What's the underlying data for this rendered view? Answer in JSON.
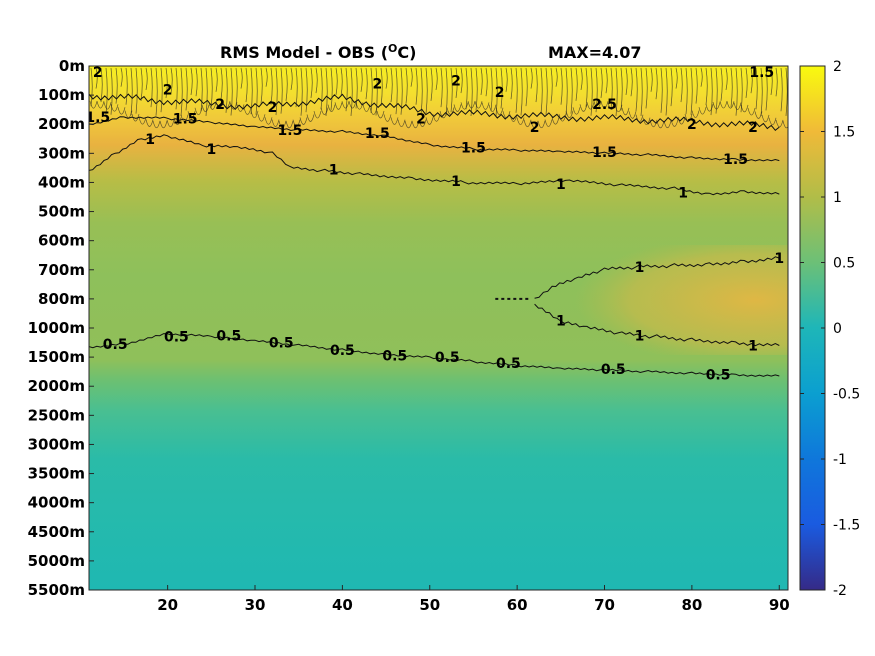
{
  "chart_data": {
    "type": "heatmap",
    "title": "RMS Model - OBS (°C)",
    "title_main": "RMS Model - OBS (",
    "title_sup": "O",
    "title_end": "C)",
    "max_label": "MAX=4.07",
    "x_ticks": [
      20,
      30,
      40,
      50,
      60,
      70,
      80,
      90
    ],
    "x_range": [
      11,
      91
    ],
    "y_ticks": [
      "0m",
      "100m",
      "200m",
      "300m",
      "400m",
      "500m",
      "600m",
      "700m",
      "800m",
      "1000m",
      "1500m",
      "2000m",
      "2500m",
      "3000m",
      "3500m",
      "4000m",
      "4500m",
      "5000m",
      "5500m"
    ],
    "colorbar": {
      "ticks": [
        2,
        1.5,
        1,
        0.5,
        0,
        -0.5,
        -1,
        -1.5,
        -2
      ],
      "range": [
        -2,
        2
      ],
      "colormap": "parula"
    },
    "contour_levels": [
      0.5,
      1,
      1.5,
      2
    ],
    "contour_labels": [
      {
        "text": "2",
        "x": 12,
        "level": 0.2
      },
      {
        "text": "2",
        "x": 20,
        "level": 0.8
      },
      {
        "text": "2",
        "x": 26,
        "level": 1.3
      },
      {
        "text": "2",
        "x": 32,
        "level": 1.4
      },
      {
        "text": "2",
        "x": 44,
        "level": 0.6
      },
      {
        "text": "2",
        "x": 49,
        "level": 1.8
      },
      {
        "text": "2",
        "x": 53,
        "level": 0.5
      },
      {
        "text": "2",
        "x": 58,
        "level": 0.9
      },
      {
        "text": "2",
        "x": 62,
        "level": 2.1
      },
      {
        "text": "2.5",
        "x": 70,
        "level": 1.3
      },
      {
        "text": "2",
        "x": 80,
        "level": 2.0
      },
      {
        "text": "2",
        "x": 87,
        "level": 2.1
      },
      {
        "text": "1.5",
        "x": 12,
        "level": 1.75
      },
      {
        "text": "1.5",
        "x": 22,
        "level": 1.8
      },
      {
        "text": "1.5",
        "x": 34,
        "level": 2.2
      },
      {
        "text": "1.5",
        "x": 44,
        "level": 2.3
      },
      {
        "text": "1.5",
        "x": 55,
        "level": 2.8
      },
      {
        "text": "1.5",
        "x": 70,
        "level": 2.95
      },
      {
        "text": "1.5",
        "x": 85,
        "level": 3.2
      },
      {
        "text": "1.5",
        "x": 88,
        "level": 0.2
      },
      {
        "text": "1",
        "x": 18,
        "level": 2.5
      },
      {
        "text": "1",
        "x": 25,
        "level": 2.85
      },
      {
        "text": "1",
        "x": 39,
        "level": 3.55
      },
      {
        "text": "1",
        "x": 53,
        "level": 3.95
      },
      {
        "text": "1",
        "x": 65,
        "level": 4.05
      },
      {
        "text": "1",
        "x": 79,
        "level": 4.35
      },
      {
        "text": "1",
        "x": 74,
        "level": 6.9
      },
      {
        "text": "1",
        "x": 90,
        "level": 6.6
      },
      {
        "text": "1",
        "x": 74,
        "level": 9.25
      },
      {
        "text": "1",
        "x": 87,
        "level": 9.6
      },
      {
        "text": "1",
        "x": 65,
        "level": 8.75
      },
      {
        "text": "0.5",
        "x": 14,
        "level": 9.55
      },
      {
        "text": "0.5",
        "x": 21,
        "level": 9.3
      },
      {
        "text": "0.5",
        "x": 27,
        "level": 9.25
      },
      {
        "text": "0.5",
        "x": 33,
        "level": 9.5
      },
      {
        "text": "0.5",
        "x": 40,
        "level": 9.75
      },
      {
        "text": "0.5",
        "x": 46,
        "level": 9.95
      },
      {
        "text": "0.5",
        "x": 52,
        "level": 10.0
      },
      {
        "text": "0.5",
        "x": 59,
        "level": 10.2
      },
      {
        "text": "0.5",
        "x": 71,
        "level": 10.4
      },
      {
        "text": "0.5",
        "x": 83,
        "level": 10.6
      }
    ]
  }
}
